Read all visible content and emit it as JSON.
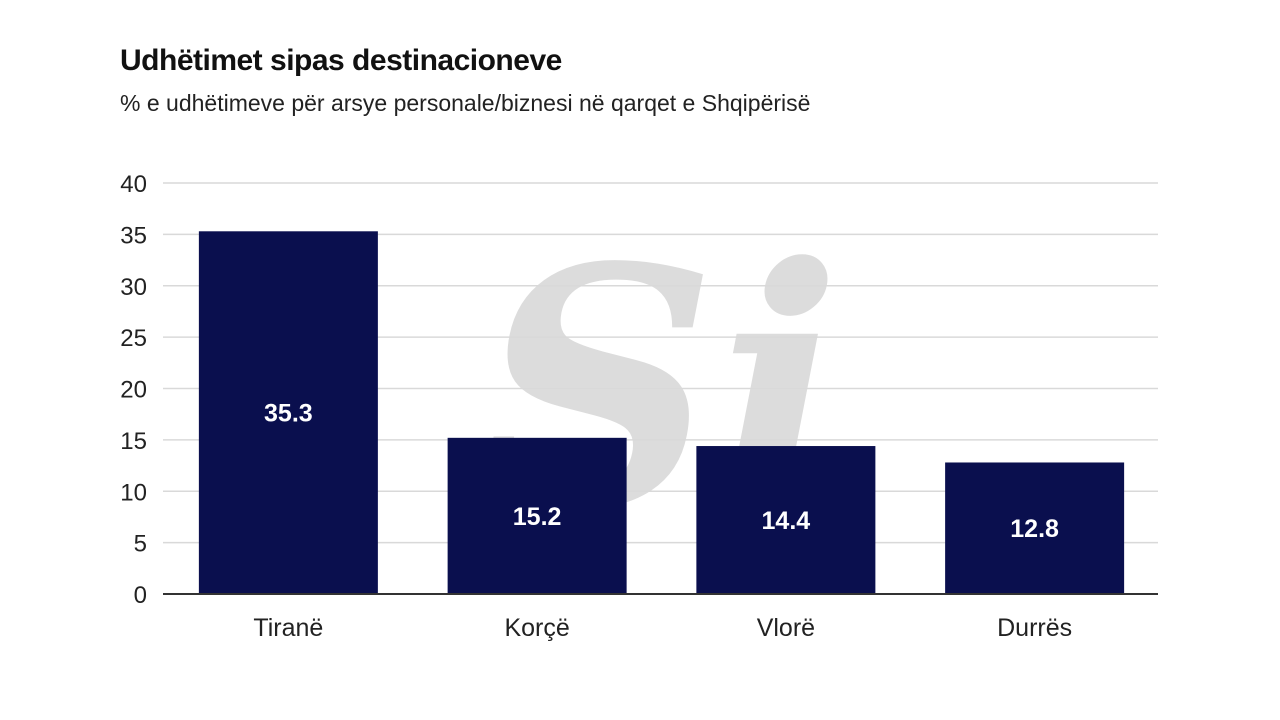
{
  "header": {
    "title": "Udhëtimet sipas destinacioneve",
    "subtitle": "% e udhëtimeve për arsye personale/biznesi në qarqet e Shqipërisë"
  },
  "watermark": {
    "text": "Si",
    "color": "#d9d9d9"
  },
  "colors": {
    "bar": "#0a0f4e",
    "grid": "#d9d9d9",
    "axis": "#333333"
  },
  "chart_data": {
    "type": "bar",
    "title": "Udhëtimet sipas destinacioneve",
    "subtitle": "% e udhëtimeve për arsye personale/biznesi në qarqet e Shqipërisë",
    "categories": [
      "Tiranë",
      "Korçë",
      "Vlorë",
      "Durrës"
    ],
    "values": [
      35.3,
      15.2,
      14.4,
      12.8
    ],
    "data_labels": [
      "35.3",
      "15.2",
      "14.4",
      "12.8"
    ],
    "ylim": [
      0,
      40
    ],
    "yticks": [
      0,
      5,
      10,
      15,
      20,
      25,
      30,
      35,
      40
    ],
    "grid": true,
    "legend": "none"
  }
}
